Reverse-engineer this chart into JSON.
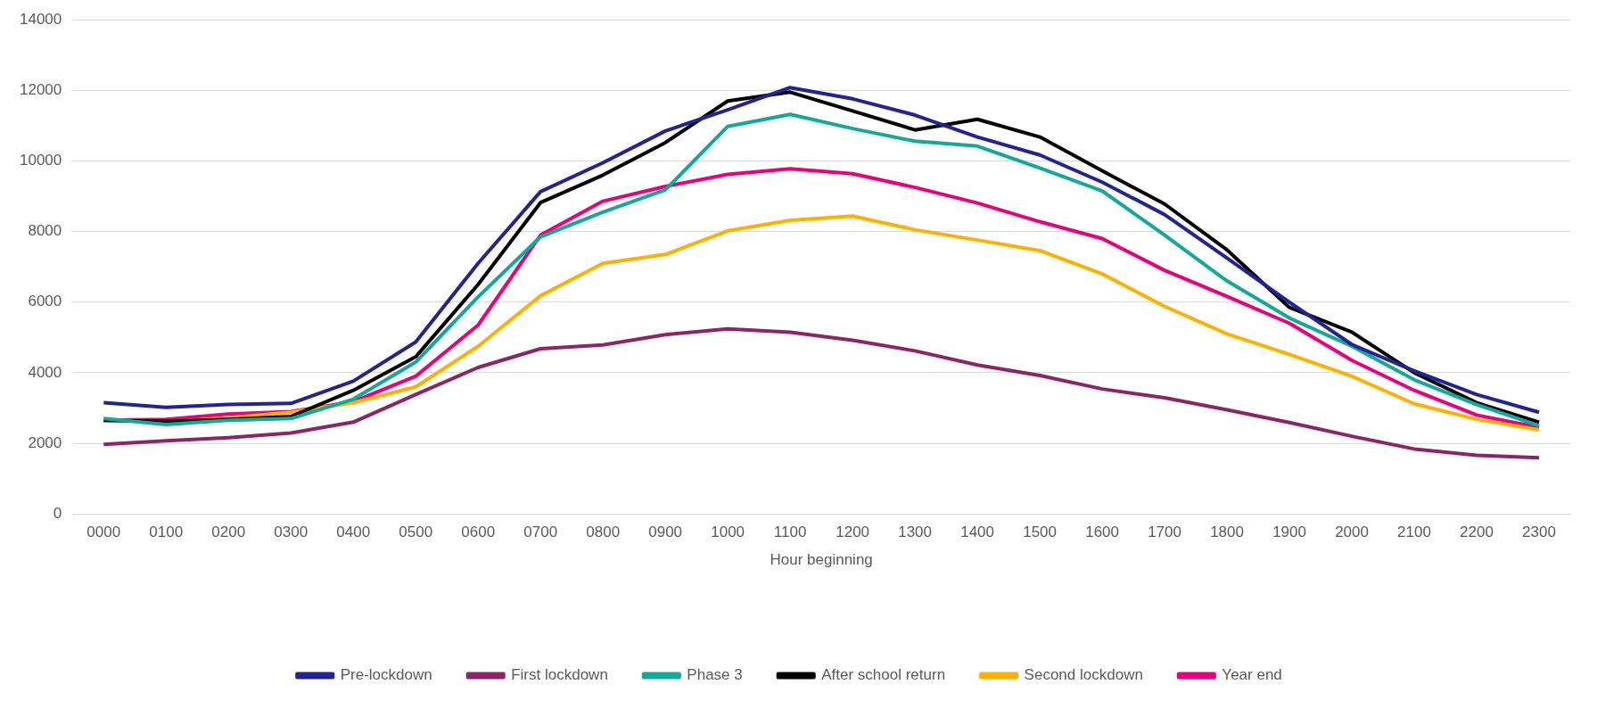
{
  "chart_data": {
    "type": "line",
    "xlabel": "Hour beginning",
    "categories": [
      "0000",
      "0100",
      "0200",
      "0300",
      "0400",
      "0500",
      "0600",
      "0700",
      "0800",
      "0900",
      "1000",
      "1100",
      "1200",
      "1300",
      "1400",
      "1500",
      "1600",
      "1700",
      "1800",
      "1900",
      "2000",
      "2100",
      "2200",
      "2300"
    ],
    "ylim": [
      0,
      14000
    ],
    "yticks": [
      0,
      2000,
      4000,
      6000,
      8000,
      10000,
      12000,
      14000
    ],
    "grid": "y",
    "legend": "bottom",
    "marker": "none",
    "line_style": "solid",
    "series": [
      {
        "name": "Pre-lockdown",
        "color": "#232396",
        "values": [
          3150,
          3020,
          3100,
          3130,
          3760,
          4870,
          7100,
          9130,
          9950,
          10850,
          11450,
          12080,
          11760,
          11300,
          10680,
          10170,
          9400,
          8480,
          7250,
          6000,
          4800,
          4050,
          3380,
          2880
        ]
      },
      {
        "name": "First lockdown",
        "color": "#8e2465",
        "values": [
          1970,
          2070,
          2160,
          2290,
          2600,
          3380,
          4150,
          4680,
          4790,
          5080,
          5240,
          5150,
          4920,
          4620,
          4220,
          3920,
          3540,
          3290,
          2950,
          2590,
          2200,
          1840,
          1660,
          1590
        ]
      },
      {
        "name": "Phase 3",
        "color": "#12a89a",
        "values": [
          2700,
          2530,
          2650,
          2700,
          3250,
          4300,
          6150,
          7850,
          8550,
          9180,
          10980,
          11320,
          10920,
          10560,
          10420,
          9800,
          9150,
          7900,
          6600,
          5550,
          4750,
          3800,
          3100,
          2500
        ]
      },
      {
        "name": "After school return",
        "color": "#000000",
        "values": [
          2650,
          2620,
          2680,
          2760,
          3500,
          4450,
          6500,
          8820,
          9600,
          10520,
          11700,
          11950,
          11420,
          10880,
          11180,
          10680,
          9720,
          8780,
          7480,
          5850,
          5150,
          4000,
          3150,
          2600
        ]
      },
      {
        "name": "Second lockdown",
        "color": "#ffb000",
        "values": [
          2650,
          2600,
          2720,
          2880,
          3150,
          3600,
          4750,
          6180,
          7100,
          7350,
          8020,
          8320,
          8440,
          8050,
          7760,
          7460,
          6800,
          5880,
          5100,
          4520,
          3900,
          3120,
          2680,
          2380
        ]
      },
      {
        "name": "Year end",
        "color": "#e8007c",
        "values": [
          2650,
          2680,
          2830,
          2900,
          3180,
          3900,
          5350,
          7900,
          8860,
          9280,
          9620,
          9780,
          9640,
          9250,
          8810,
          8280,
          7800,
          6900,
          6160,
          5400,
          4350,
          3500,
          2800,
          2450
        ]
      }
    ]
  }
}
